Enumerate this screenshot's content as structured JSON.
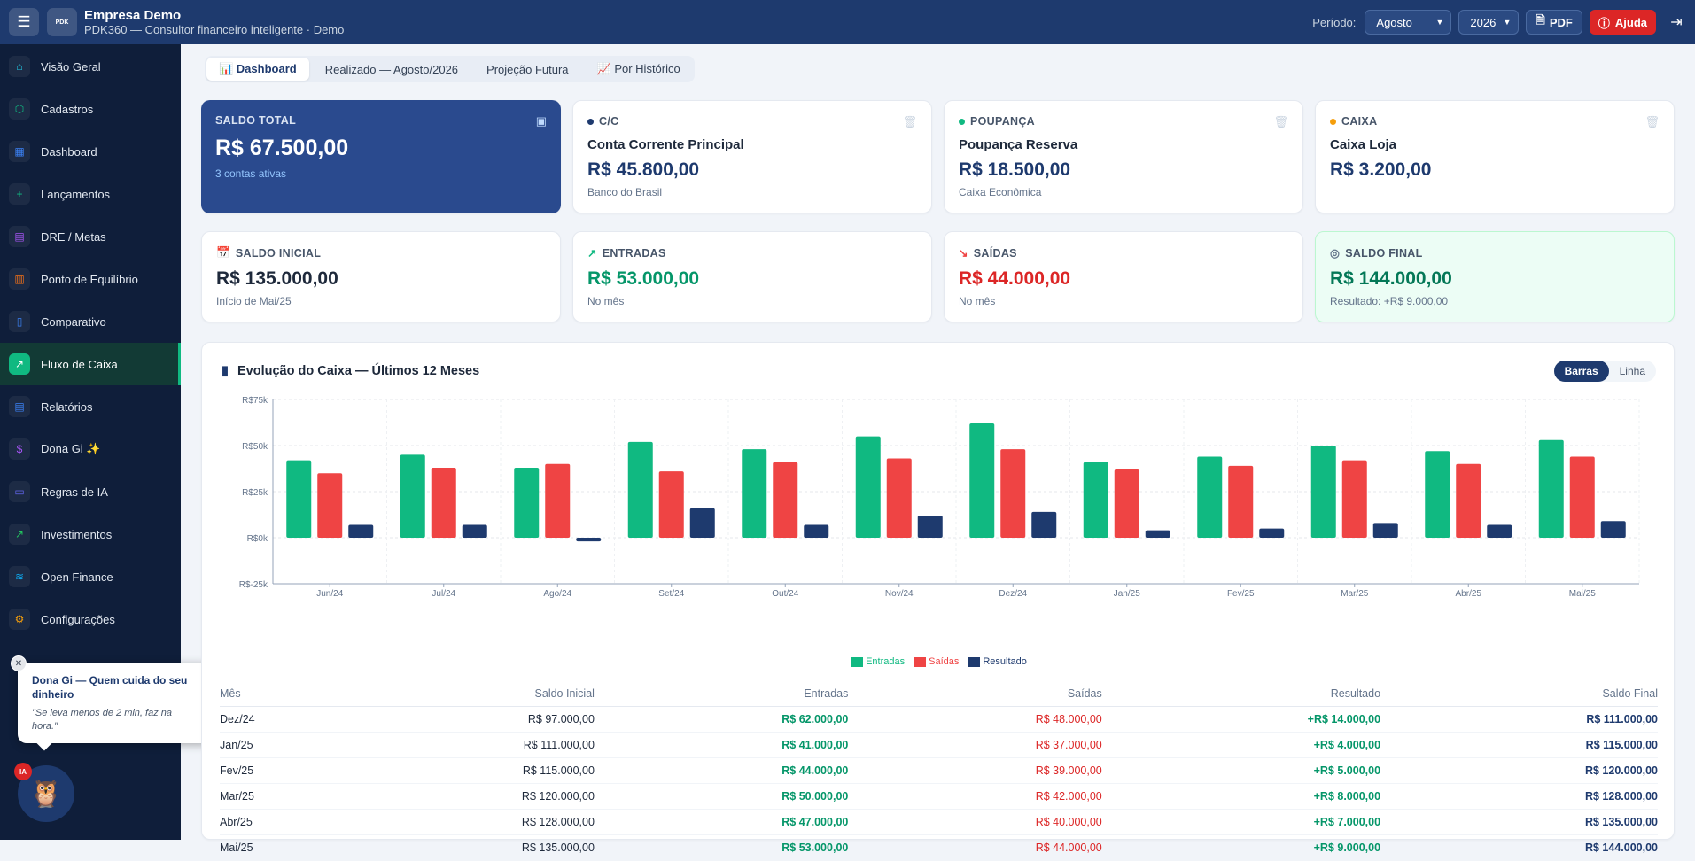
{
  "header": {
    "company": "Empresa Demo",
    "subtitle": "PDK360 — Consultor financeiro inteligente · Demo",
    "logo_text": "PDK360",
    "period_label": "Período:",
    "month": "Agosto",
    "year": "2026",
    "pdf_label": "PDF",
    "help_label": "Ajuda"
  },
  "sidebar": {
    "items": [
      {
        "label": "Visão Geral",
        "icon": "home-icon",
        "color": "#22d3ee"
      },
      {
        "label": "Cadastros",
        "icon": "cube-icon",
        "color": "#10b981"
      },
      {
        "label": "Dashboard",
        "icon": "grid-icon",
        "color": "#3b82f6"
      },
      {
        "label": "Lançamentos",
        "icon": "plus-icon",
        "color": "#10b981"
      },
      {
        "label": "DRE / Metas",
        "icon": "file-icon",
        "color": "#a855f7"
      },
      {
        "label": "Ponto de Equilíbrio",
        "icon": "calculator-icon",
        "color": "#f97316"
      },
      {
        "label": "Comparativo",
        "icon": "bar-chart-icon",
        "color": "#3b82f6"
      },
      {
        "label": "Fluxo de Caixa",
        "icon": "trending-up-icon",
        "color": "#10b981"
      },
      {
        "label": "Relatórios",
        "icon": "document-icon",
        "color": "#3b82f6"
      },
      {
        "label": "Dona Gi ✨",
        "icon": "dollar-icon",
        "color": "#a855f7"
      },
      {
        "label": "Regras de IA",
        "icon": "book-icon",
        "color": "#6366f1"
      },
      {
        "label": "Investimentos",
        "icon": "chart-up-icon",
        "color": "#22c55e"
      },
      {
        "label": "Open Finance",
        "icon": "wifi-icon",
        "color": "#0ea5e9"
      },
      {
        "label": "Configurações",
        "icon": "gear-icon",
        "color": "#f59e0b"
      }
    ]
  },
  "assistant": {
    "title": "Dona Gi — Quem cuida do seu dinheiro",
    "quote": "\"Se leva menos de 2 min, faz na hora.\"",
    "badge": "IA"
  },
  "tabs": [
    {
      "label": "📊 Dashboard"
    },
    {
      "label": "Realizado — Agosto/2026"
    },
    {
      "label": "Projeção Futura"
    },
    {
      "label": "📈 Por Histórico"
    }
  ],
  "accounts": {
    "total": {
      "title": "SALDO TOTAL",
      "value": "R$ 67.500,00",
      "sub": "3 contas ativas"
    },
    "cards": [
      {
        "type": "C/C",
        "name": "Conta Corrente Principal",
        "value": "R$ 45.800,00",
        "bank": "Banco do Brasil",
        "dot": "#1e3a6e"
      },
      {
        "type": "POUPANÇA",
        "name": "Poupança Reserva",
        "value": "R$ 18.500,00",
        "bank": "Caixa Econômica",
        "dot": "#10b981"
      },
      {
        "type": "CAIXA",
        "name": "Caixa Loja",
        "value": "R$ 3.200,00",
        "bank": "",
        "dot": "#f59e0b"
      }
    ]
  },
  "summary": {
    "initial": {
      "title": "SALDO INICIAL",
      "value": "R$ 135.000,00",
      "sub": "Início de Mai/25"
    },
    "in": {
      "title": "ENTRADAS",
      "value": "R$ 53.000,00",
      "sub": "No mês"
    },
    "out": {
      "title": "SAÍDAS",
      "value": "R$ 44.000,00",
      "sub": "No mês"
    },
    "final": {
      "title": "SALDO FINAL",
      "value": "R$ 144.000,00",
      "sub": "Resultado: +R$ 9.000,00"
    }
  },
  "chart_section": {
    "title": "Evolução do Caixa — Últimos 12 Meses",
    "toggle": [
      "Barras",
      "Linha"
    ]
  },
  "chart_data": {
    "type": "bar",
    "categories": [
      "Jun/24",
      "Jul/24",
      "Ago/24",
      "Set/24",
      "Out/24",
      "Nov/24",
      "Dez/24",
      "Jan/25",
      "Fev/25",
      "Mar/25",
      "Abr/25",
      "Mai/25"
    ],
    "series": [
      {
        "name": "Entradas",
        "color": "#10b981",
        "values": [
          42000,
          45000,
          38000,
          52000,
          48000,
          55000,
          62000,
          41000,
          44000,
          50000,
          47000,
          53000
        ]
      },
      {
        "name": "Saídas",
        "color": "#ef4444",
        "values": [
          35000,
          38000,
          40000,
          36000,
          41000,
          43000,
          48000,
          37000,
          39000,
          42000,
          40000,
          44000
        ]
      },
      {
        "name": "Resultado",
        "color": "#1e3a6e",
        "values": [
          7000,
          7000,
          -2000,
          16000,
          7000,
          12000,
          14000,
          4000,
          5000,
          8000,
          7000,
          9000
        ]
      }
    ],
    "yticks": [
      "R$-25k",
      "R$0k",
      "R$25k",
      "R$50k",
      "R$75k"
    ],
    "ylim": [
      -25000,
      75000
    ],
    "grid": true,
    "legend": "bottom"
  },
  "table": {
    "headers": [
      "Mês",
      "Saldo Inicial",
      "Entradas",
      "Saídas",
      "Resultado",
      "Saldo Final"
    ],
    "rows": [
      [
        "Dez/24",
        "R$ 97.000,00",
        "R$ 62.000,00",
        "R$ 48.000,00",
        "+R$ 14.000,00",
        "R$ 111.000,00"
      ],
      [
        "Jan/25",
        "R$ 111.000,00",
        "R$ 41.000,00",
        "R$ 37.000,00",
        "+R$ 4.000,00",
        "R$ 115.000,00"
      ],
      [
        "Fev/25",
        "R$ 115.000,00",
        "R$ 44.000,00",
        "R$ 39.000,00",
        "+R$ 5.000,00",
        "R$ 120.000,00"
      ],
      [
        "Mar/25",
        "R$ 120.000,00",
        "R$ 50.000,00",
        "R$ 42.000,00",
        "+R$ 8.000,00",
        "R$ 128.000,00"
      ],
      [
        "Abr/25",
        "R$ 128.000,00",
        "R$ 47.000,00",
        "R$ 40.000,00",
        "+R$ 7.000,00",
        "R$ 135.000,00"
      ],
      [
        "Mai/25",
        "R$ 135.000,00",
        "R$ 53.000,00",
        "R$ 44.000,00",
        "+R$ 9.000,00",
        "R$ 144.000,00"
      ]
    ]
  }
}
